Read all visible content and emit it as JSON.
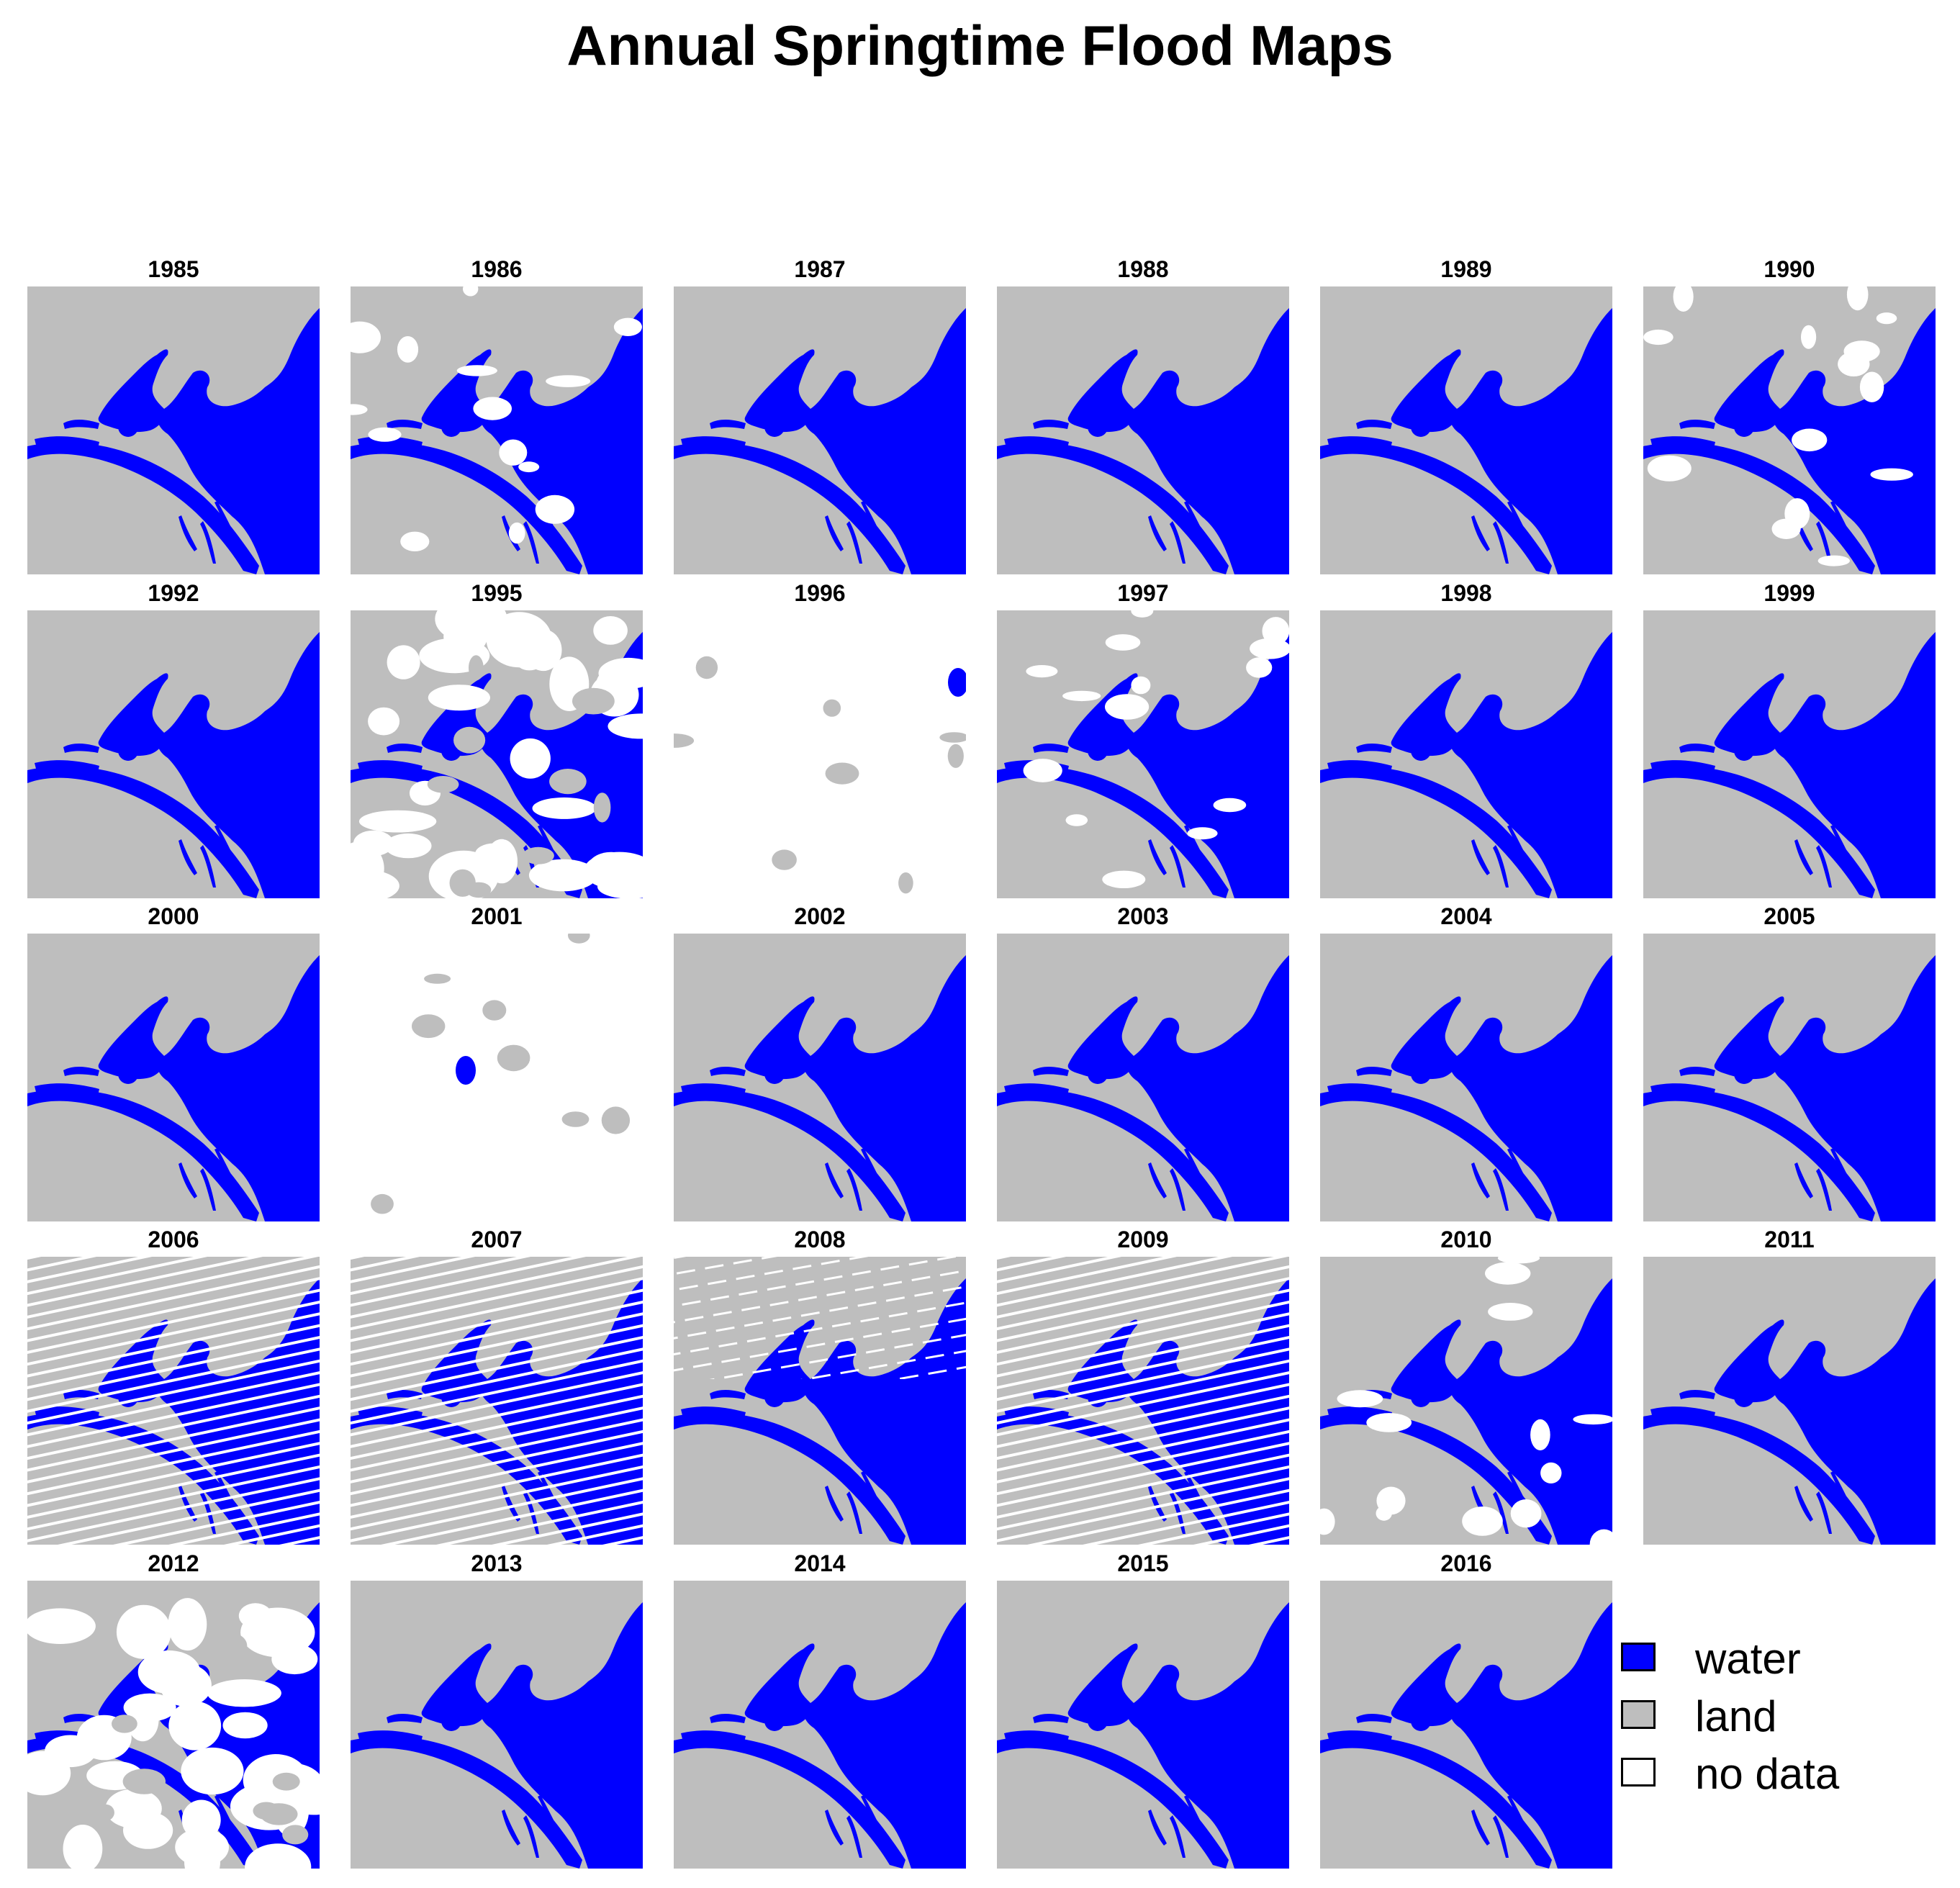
{
  "title": "Annual Springtime Flood Maps",
  "colors": {
    "water": "#0000ff",
    "land": "#bebebe",
    "no_data": "#ffffff"
  },
  "panels": [
    {
      "year": "1985",
      "state": "clear"
    },
    {
      "year": "1986",
      "state": "partly-cloudy"
    },
    {
      "year": "1987",
      "state": "clear"
    },
    {
      "year": "1988",
      "state": "clear"
    },
    {
      "year": "1989",
      "state": "clear"
    },
    {
      "year": "1990",
      "state": "partly-cloudy"
    },
    {
      "year": "1992",
      "state": "clear"
    },
    {
      "year": "1995",
      "state": "mostly-cloudy"
    },
    {
      "year": "1996",
      "state": "no-data"
    },
    {
      "year": "1997",
      "state": "partly-cloudy"
    },
    {
      "year": "1998",
      "state": "clear"
    },
    {
      "year": "1999",
      "state": "clear"
    },
    {
      "year": "2000",
      "state": "clear"
    },
    {
      "year": "2001",
      "state": "no-data"
    },
    {
      "year": "2002",
      "state": "clear"
    },
    {
      "year": "2003",
      "state": "clear"
    },
    {
      "year": "2004",
      "state": "clear"
    },
    {
      "year": "2005",
      "state": "clear"
    },
    {
      "year": "2006",
      "state": "striped"
    },
    {
      "year": "2007",
      "state": "striped"
    },
    {
      "year": "2008",
      "state": "striped-light"
    },
    {
      "year": "2009",
      "state": "striped"
    },
    {
      "year": "2010",
      "state": "partly-cloudy"
    },
    {
      "year": "2011",
      "state": "clear"
    },
    {
      "year": "2012",
      "state": "mostly-cloudy"
    },
    {
      "year": "2013",
      "state": "clear"
    },
    {
      "year": "2014",
      "state": "clear"
    },
    {
      "year": "2015",
      "state": "clear"
    },
    {
      "year": "2016",
      "state": "clear"
    }
  ],
  "legend": [
    {
      "label": "water",
      "color": "#0000ff"
    },
    {
      "label": "land",
      "color": "#bebebe"
    },
    {
      "label": "no data",
      "color": "#ffffff"
    }
  ]
}
